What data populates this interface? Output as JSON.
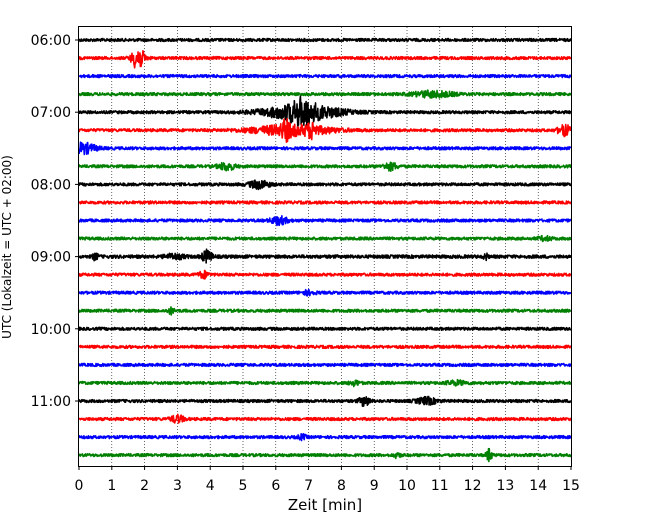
{
  "chart_data": {
    "type": "line",
    "title": "",
    "xlabel": "Zeit  [min]",
    "ylabel": "UTC (Lokalzeit = UTC + 02:00)",
    "xlim": [
      0,
      15
    ],
    "x_ticks": [
      "0",
      "1",
      "2",
      "3",
      "4",
      "5",
      "6",
      "7",
      "8",
      "9",
      "10",
      "11",
      "12",
      "13",
      "14",
      "15"
    ],
    "y_ticks": [
      "06:00",
      "07:00",
      "08:00",
      "09:00",
      "10:00",
      "11:00"
    ],
    "grid": "vertical dotted at each minute",
    "colors": [
      "#000000",
      "#ff0000",
      "#0000ff",
      "#008000"
    ],
    "trace_count": 24,
    "trace_interval_min": 15,
    "first_trace": "06:00",
    "series": [
      {
        "start": "06:00",
        "color": "#000000",
        "noise": 0.22,
        "events": []
      },
      {
        "start": "06:15",
        "color": "#ff0000",
        "noise": 0.22,
        "events": [
          {
            "t": 1.8,
            "a": 1.8,
            "w": 0.18
          }
        ]
      },
      {
        "start": "06:30",
        "color": "#0000ff",
        "noise": 0.22,
        "events": []
      },
      {
        "start": "06:45",
        "color": "#008000",
        "noise": 0.22,
        "events": [
          {
            "t": 10.8,
            "a": 0.45,
            "w": 0.6
          }
        ]
      },
      {
        "start": "07:00",
        "color": "#000000",
        "noise": 0.22,
        "events": [
          {
            "t": 6.8,
            "a": 1.3,
            "w": 1.1
          },
          {
            "t": 6.8,
            "a": 1.0,
            "w": 0.3
          }
        ]
      },
      {
        "start": "07:15",
        "color": "#ff0000",
        "noise": 0.22,
        "events": [
          {
            "t": 6.5,
            "a": 0.8,
            "w": 1.2
          },
          {
            "t": 14.8,
            "a": 0.8,
            "w": 0.2
          },
          {
            "t": 6.3,
            "a": 1.0,
            "w": 0.12
          },
          {
            "t": 7.1,
            "a": 0.8,
            "w": 0.12
          }
        ]
      },
      {
        "start": "07:30",
        "color": "#0000ff",
        "noise": 0.22,
        "events": [
          {
            "t": 0.1,
            "a": 0.8,
            "w": 0.4
          }
        ]
      },
      {
        "start": "07:45",
        "color": "#008000",
        "noise": 0.22,
        "events": [
          {
            "t": 4.5,
            "a": 0.55,
            "w": 0.25
          },
          {
            "t": 9.5,
            "a": 0.55,
            "w": 0.2
          }
        ]
      },
      {
        "start": "08:00",
        "color": "#000000",
        "noise": 0.22,
        "events": [
          {
            "t": 5.5,
            "a": 0.6,
            "w": 0.3
          }
        ]
      },
      {
        "start": "08:15",
        "color": "#ff0000",
        "noise": 0.22,
        "events": []
      },
      {
        "start": "08:30",
        "color": "#0000ff",
        "noise": 0.22,
        "events": [
          {
            "t": 6.1,
            "a": 0.6,
            "w": 0.25
          }
        ]
      },
      {
        "start": "08:45",
        "color": "#008000",
        "noise": 0.22,
        "events": [
          {
            "t": 14.2,
            "a": 0.3,
            "w": 0.2
          }
        ]
      },
      {
        "start": "09:00",
        "color": "#000000",
        "noise": 0.25,
        "events": [
          {
            "t": 0.5,
            "a": 0.5,
            "w": 0.08
          },
          {
            "t": 2.9,
            "a": 0.35,
            "w": 0.3
          },
          {
            "t": 3.9,
            "a": 0.9,
            "w": 0.15
          },
          {
            "t": 12.4,
            "a": 0.5,
            "w": 0.06
          }
        ]
      },
      {
        "start": "09:15",
        "color": "#ff0000",
        "noise": 0.22,
        "events": [
          {
            "t": 3.8,
            "a": 0.5,
            "w": 0.15
          }
        ]
      },
      {
        "start": "09:30",
        "color": "#0000ff",
        "noise": 0.22,
        "events": [
          {
            "t": 7.0,
            "a": 0.3,
            "w": 0.2
          }
        ]
      },
      {
        "start": "09:45",
        "color": "#008000",
        "noise": 0.22,
        "events": [
          {
            "t": 2.8,
            "a": 0.45,
            "w": 0.1
          }
        ]
      },
      {
        "start": "10:00",
        "color": "#000000",
        "noise": 0.22,
        "events": []
      },
      {
        "start": "10:15",
        "color": "#ff0000",
        "noise": 0.22,
        "events": []
      },
      {
        "start": "10:30",
        "color": "#0000ff",
        "noise": 0.22,
        "events": []
      },
      {
        "start": "10:45",
        "color": "#008000",
        "noise": 0.22,
        "events": [
          {
            "t": 8.4,
            "a": 0.35,
            "w": 0.15
          },
          {
            "t": 11.5,
            "a": 0.3,
            "w": 0.3
          }
        ]
      },
      {
        "start": "11:00",
        "color": "#000000",
        "noise": 0.22,
        "events": [
          {
            "t": 8.7,
            "a": 0.75,
            "w": 0.15
          },
          {
            "t": 10.6,
            "a": 0.5,
            "w": 0.3
          }
        ]
      },
      {
        "start": "11:15",
        "color": "#ff0000",
        "noise": 0.22,
        "events": [
          {
            "t": 3.0,
            "a": 0.55,
            "w": 0.2
          }
        ]
      },
      {
        "start": "11:30",
        "color": "#0000ff",
        "noise": 0.22,
        "events": [
          {
            "t": 6.8,
            "a": 0.35,
            "w": 0.12
          }
        ]
      },
      {
        "start": "11:45",
        "color": "#008000",
        "noise": 0.22,
        "events": [
          {
            "t": 9.7,
            "a": 0.35,
            "w": 0.1
          },
          {
            "t": 12.5,
            "a": 1.0,
            "w": 0.08
          }
        ]
      }
    ]
  }
}
